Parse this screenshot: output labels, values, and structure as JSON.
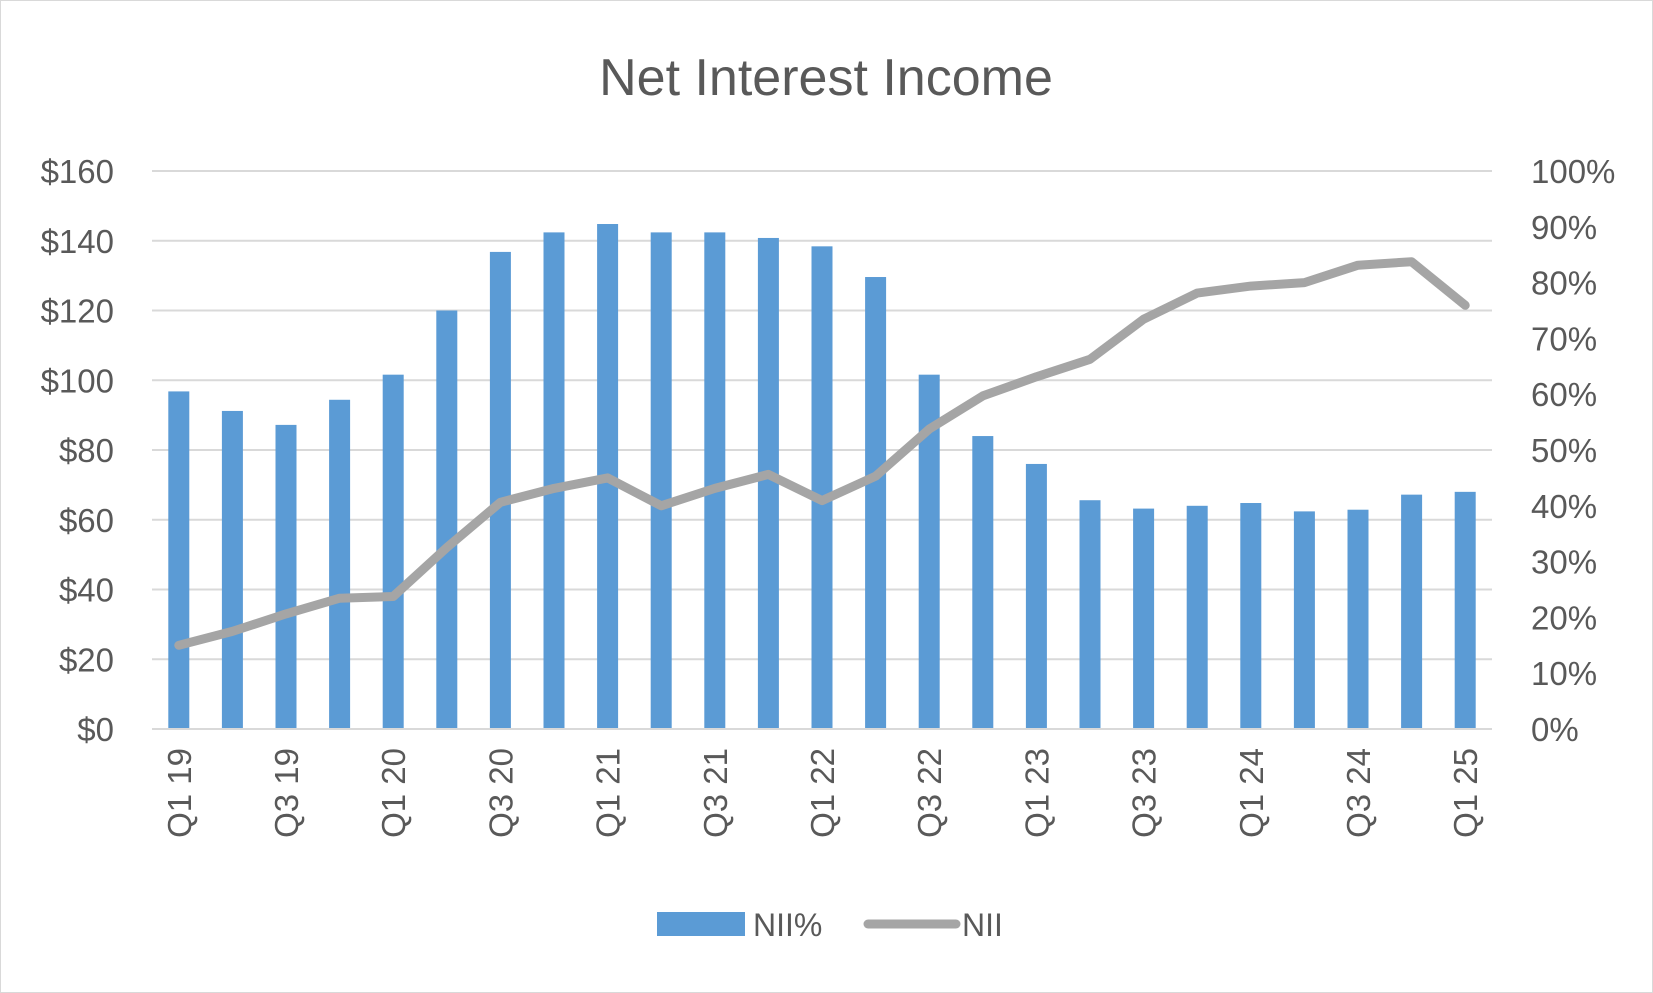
{
  "chart_data": {
    "type": "bar",
    "title": "Net Interest Income",
    "xlabel": "",
    "ylabel": "",
    "categories": [
      "Q1 19",
      "Q2 19",
      "Q3 19",
      "Q4 19",
      "Q1 20",
      "Q2 20",
      "Q3 20",
      "Q4 20",
      "Q1 21",
      "Q2 21",
      "Q3 21",
      "Q4 21",
      "Q1 22",
      "Q2 22",
      "Q3 22",
      "Q4 22",
      "Q1 23",
      "Q2 23",
      "Q3 23",
      "Q4 23",
      "Q1 24",
      "Q2 24",
      "Q3 24",
      "Q4 24",
      "Q1 25"
    ],
    "x_tick_labels": [
      "Q1 19",
      "",
      "Q3 19",
      "",
      "Q1 20",
      "",
      "Q3 20",
      "",
      "Q1 21",
      "",
      "Q3 21",
      "",
      "Q1 22",
      "",
      "Q3 22",
      "",
      "Q1 23",
      "",
      "Q3 23",
      "",
      "Q1 24",
      "",
      "Q3 24",
      "",
      "Q1 25"
    ],
    "y_left": {
      "ylim": [
        0,
        160
      ],
      "ticks": [
        0,
        20,
        40,
        60,
        80,
        100,
        120,
        140,
        160
      ],
      "tick_labels": [
        "$0",
        "$20",
        "$40",
        "$60",
        "$80",
        "$100",
        "$120",
        "$140",
        "$160"
      ]
    },
    "y_right": {
      "ylim": [
        0,
        100
      ],
      "ticks": [
        0,
        10,
        20,
        30,
        40,
        50,
        60,
        70,
        80,
        90,
        100
      ],
      "tick_labels": [
        "0%",
        "10%",
        "20%",
        "30%",
        "40%",
        "50%",
        "60%",
        "70%",
        "80%",
        "90%",
        "100%"
      ]
    },
    "grid": true,
    "legend_position": "bottom",
    "series": [
      {
        "name": "NII%",
        "type": "bar",
        "axis": "right",
        "color": "#5b9bd5",
        "values": [
          60.5,
          57,
          54.5,
          59,
          63.5,
          75,
          85.5,
          89,
          90.5,
          89,
          89,
          88,
          86.5,
          81,
          63.5,
          52.5,
          47.5,
          41,
          39.5,
          40,
          40.5,
          39,
          39.3,
          42,
          42.5
        ]
      },
      {
        "name": "NII",
        "type": "line",
        "axis": "left",
        "color": "#a5a5a5",
        "values": [
          24,
          28,
          33,
          37.5,
          38,
          52,
          65,
          69,
          72,
          64,
          69,
          73,
          65.5,
          72.5,
          86,
          95.5,
          101,
          106,
          117.5,
          125,
          127,
          128,
          133,
          134,
          121.5
        ]
      }
    ]
  }
}
